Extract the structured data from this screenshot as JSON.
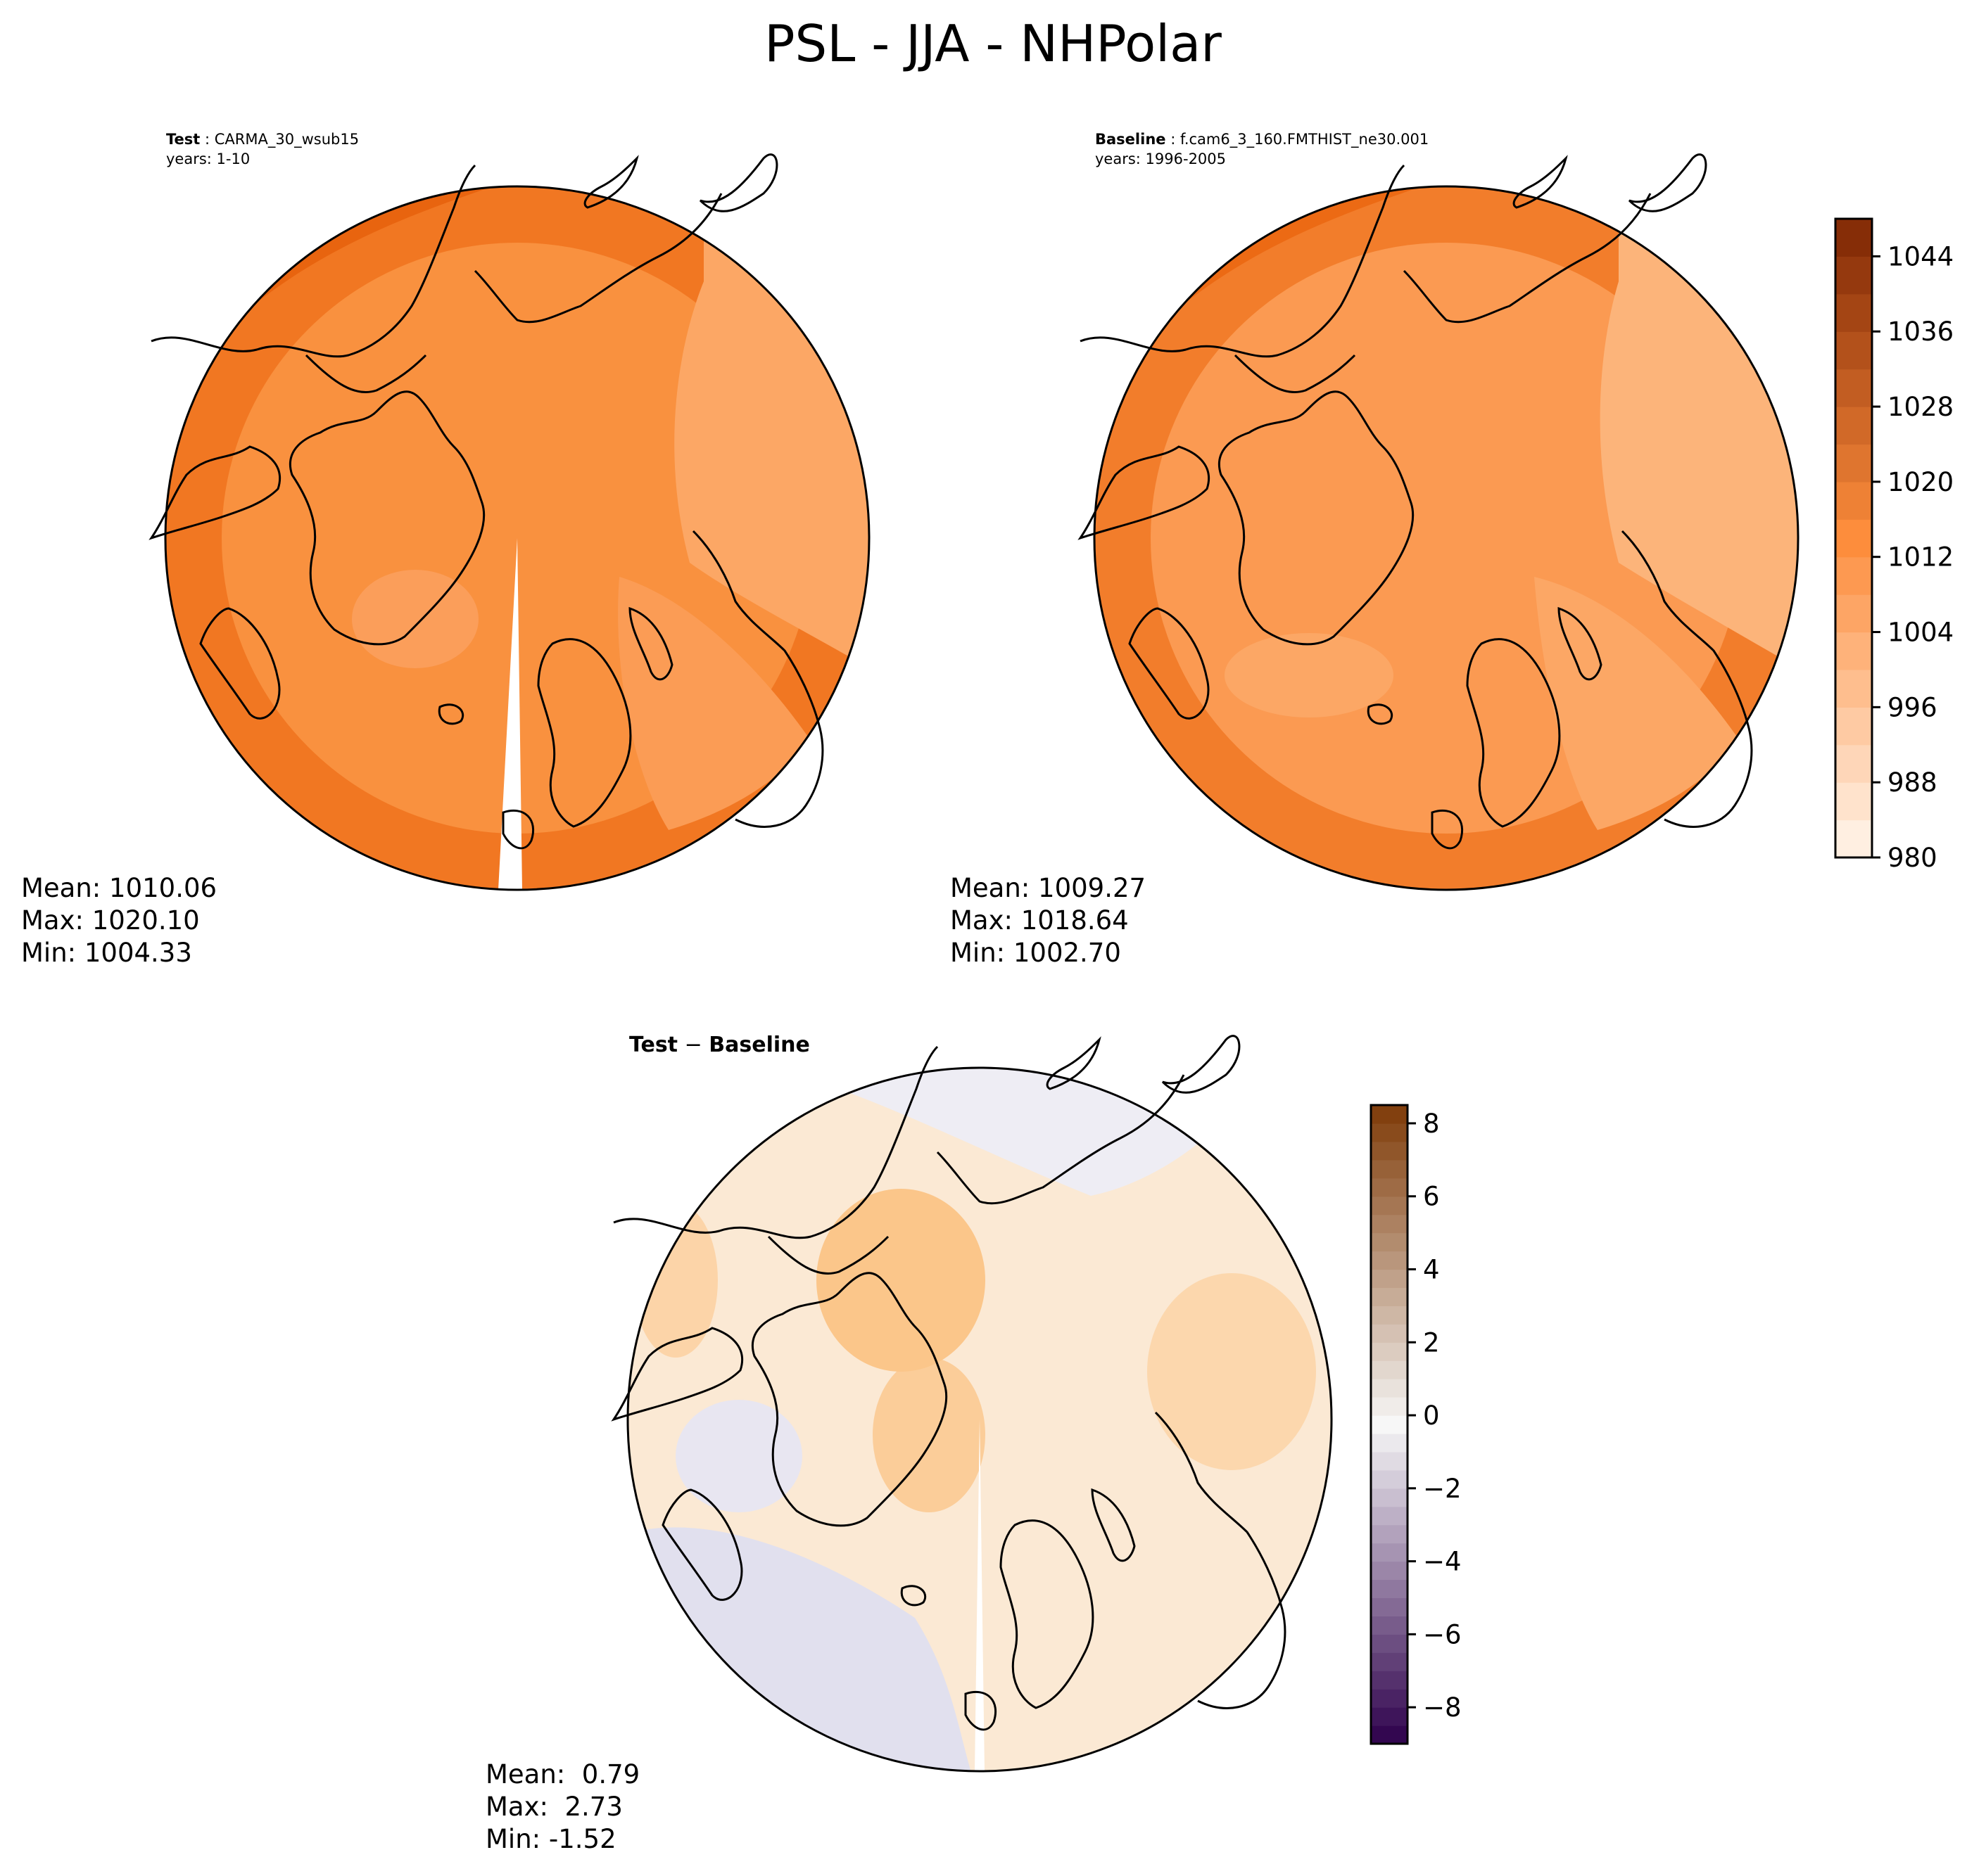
{
  "figure": {
    "title": "PSL - JJA - NHPolar"
  },
  "panels": {
    "test": {
      "label": "Test",
      "case": "CARMA_30_wsub15",
      "years": "years: 1-10",
      "mean": "Mean: 1010.06",
      "max": "Max: 1020.10",
      "min": "Min: 1004.33"
    },
    "baseline": {
      "label": "Baseline",
      "case": "f.cam6_3_160.FMTHIST_ne30.001",
      "years": "years: 1996-2005",
      "mean": "Mean: 1009.27",
      "max": "Max: 1018.64",
      "min": "Min: 1002.70"
    },
    "diff": {
      "label_a": "Test",
      "label_op": " − ",
      "label_b": "Baseline",
      "mean": "Mean:  0.79",
      "max": "Max:  2.73",
      "min": "Min: -1.52"
    }
  },
  "chart_data": [
    {
      "type": "heatmap",
      "projection": "north-polar-stereographic",
      "field": "PSL",
      "season": "JJA",
      "title": "Test : CARMA_30_wsub15",
      "stats": {
        "mean": 1010.06,
        "max": 1020.1,
        "min": 1004.33
      },
      "colormap": "Oranges",
      "levels_range": [
        980,
        1048
      ],
      "colorbar_ticks": [
        980,
        988,
        996,
        1004,
        1012,
        1020,
        1028,
        1036,
        1044
      ]
    },
    {
      "type": "heatmap",
      "projection": "north-polar-stereographic",
      "field": "PSL",
      "season": "JJA",
      "title": "Baseline : f.cam6_3_160.FMTHIST_ne30.001",
      "stats": {
        "mean": 1009.27,
        "max": 1018.64,
        "min": 1002.7
      },
      "colormap": "Oranges",
      "levels_range": [
        980,
        1048
      ],
      "colorbar_ticks": [
        980,
        988,
        996,
        1004,
        1012,
        1020,
        1028,
        1036,
        1044
      ]
    },
    {
      "type": "heatmap",
      "projection": "north-polar-stereographic",
      "field": "PSL difference",
      "title": "Test − Baseline",
      "stats": {
        "mean": 0.79,
        "max": 2.73,
        "min": -1.52
      },
      "colormap": "PuOr_r",
      "levels_range": [
        -9,
        8.5
      ],
      "colorbar_ticks": [
        -8,
        -6,
        -4,
        -2,
        0,
        2,
        4,
        6,
        8
      ],
      "colorbar_tick_labels": [
        "−8",
        "−6",
        "−4",
        "−2",
        "0",
        "2",
        "4",
        "6",
        "8"
      ]
    }
  ],
  "colors": {
    "abs_low": "#fff5eb",
    "abs_mid": "#fd8d3c",
    "abs_high": "#7f2704",
    "diff_low": "#2d004b",
    "diff_mid": "#f7f7f7",
    "diff_high": "#7f3b08",
    "coast": "#000000"
  }
}
